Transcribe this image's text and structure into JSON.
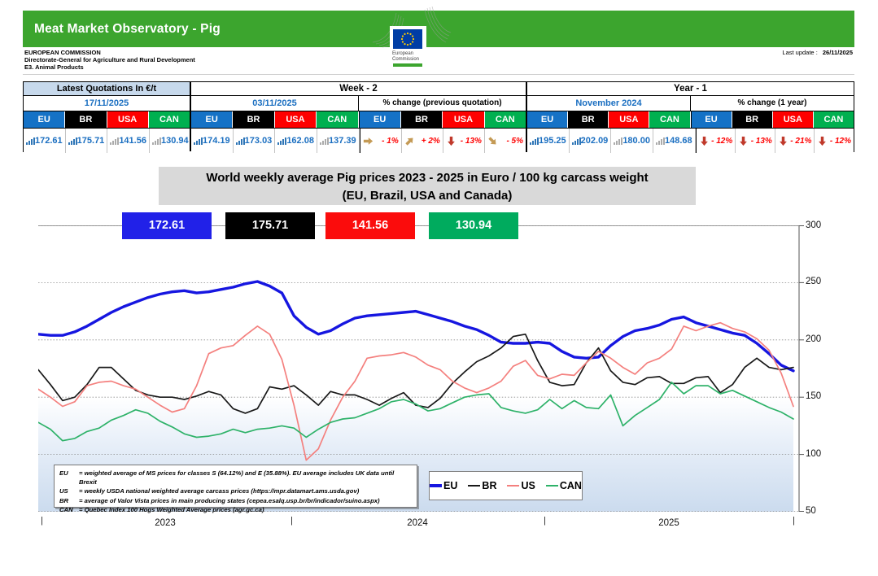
{
  "header": {
    "banner_title": "Meat Market Observatory - Pig",
    "org_line1": "EUROPEAN COMMISSION",
    "org_line2": "Directorate-General for Agriculture and Rural Development",
    "org_line3": "E3. Animal Products",
    "last_update_label": "Last update :",
    "last_update_value": "26/11/2025",
    "logo_caption_line1": "European",
    "logo_caption_line2": "Commission"
  },
  "quotes_table": {
    "columns": [
      "EU",
      "BR",
      "USA",
      "CAN"
    ],
    "col_colors": [
      "#1572C6",
      "#000000",
      "#FE0000",
      "#00B050"
    ],
    "s1": {
      "title": "Latest Quotations In €/t",
      "date": "17/11/2025",
      "values": [
        "172.61",
        "175.71",
        "141.56",
        "130.94"
      ],
      "icons": [
        "blue",
        "blue",
        "gray",
        "gray"
      ]
    },
    "s2": {
      "title": "Week - 2",
      "date": "03/11/2025",
      "pct_title": "% change (previous quotation)",
      "values": [
        "174.19",
        "173.03",
        "162.08",
        "137.39"
      ],
      "icons": [
        "blue",
        "blue",
        "blue",
        "gray"
      ],
      "changes": [
        {
          "dir": "right",
          "color": "#C49A55",
          "text": "- 1%"
        },
        {
          "dir": "up-right",
          "color": "#C49A55",
          "text": "+ 2%"
        },
        {
          "dir": "down",
          "color": "#C0392B",
          "text": "- 13%"
        },
        {
          "dir": "down-right",
          "color": "#C49A55",
          "text": "- 5%"
        }
      ]
    },
    "s3": {
      "title": "Year - 1",
      "date": "November 2024",
      "pct_title": "% change (1 year)",
      "values": [
        "195.25",
        "202.09",
        "180.00",
        "148.68"
      ],
      "icons": [
        "blue",
        "blue",
        "gray",
        "gray"
      ],
      "changes": [
        {
          "dir": "down",
          "color": "#C0392B",
          "text": "- 12%"
        },
        {
          "dir": "down",
          "color": "#C0392B",
          "text": "- 13%"
        },
        {
          "dir": "down",
          "color": "#C0392B",
          "text": "- 21%"
        },
        {
          "dir": "down",
          "color": "#C0392B",
          "text": "- 12%"
        }
      ]
    }
  },
  "chart_data": {
    "type": "line",
    "title_line1": "World weekly average Pig prices 2023 - 2025  in Euro / 100 kg carcass weight",
    "title_line2": "(EU, Brazil, USA and Canada)",
    "ylim": [
      50,
      300
    ],
    "yticks": [
      300,
      250,
      200,
      150,
      100,
      50
    ],
    "x_years": [
      "2023",
      "2024",
      "2025"
    ],
    "grid": true,
    "legend_position": "bottom-center",
    "current_boxes": [
      {
        "value": "172.61",
        "color": "#2121E8"
      },
      {
        "value": "175.71",
        "color": "#000000"
      },
      {
        "value": "141.56",
        "color": "#FB0C0C"
      },
      {
        "value": "130.94",
        "color": "#00AB5E"
      }
    ],
    "legend": [
      {
        "label": "EU",
        "color": "#1616E0"
      },
      {
        "label": "BR",
        "color": "#191919"
      },
      {
        "label": "US",
        "color": "#F4807E"
      },
      {
        "label": "CAN",
        "color": "#2EB269"
      }
    ],
    "series": [
      {
        "name": "EU",
        "color": "#1616E0",
        "width": 3.4,
        "values": [
          205,
          204,
          204,
          207,
          212,
          218,
          224,
          229,
          233,
          237,
          240,
          242,
          243,
          241,
          242,
          244,
          246,
          249,
          251,
          247,
          241,
          221,
          211,
          205,
          208,
          214,
          219,
          221,
          222,
          223,
          224,
          225,
          222,
          219,
          216,
          212,
          209,
          204,
          198,
          197,
          197,
          198,
          197,
          190,
          185,
          184,
          185,
          195,
          203,
          208,
          210,
          213,
          218,
          220,
          215,
          212,
          209,
          206,
          204,
          197,
          188,
          178,
          173
        ]
      },
      {
        "name": "BR",
        "color": "#191919",
        "width": 1.7,
        "values": [
          174,
          161,
          147,
          150,
          161,
          176,
          176,
          166,
          156,
          152,
          150,
          150,
          148,
          151,
          155,
          152,
          140,
          136,
          140,
          159,
          157,
          160,
          152,
          143,
          155,
          152,
          152,
          148,
          143,
          149,
          154,
          143,
          141,
          149,
          162,
          172,
          181,
          186,
          193,
          203,
          205,
          182,
          163,
          160,
          161,
          180,
          193,
          173,
          163,
          161,
          167,
          168,
          162,
          162,
          167,
          168,
          154,
          161,
          176,
          184,
          176,
          174,
          176
        ]
      },
      {
        "name": "US",
        "color": "#F4807E",
        "width": 1.7,
        "values": [
          157,
          150,
          142,
          146,
          160,
          163,
          164,
          160,
          157,
          150,
          143,
          137,
          140,
          160,
          188,
          193,
          195,
          204,
          212,
          205,
          183,
          143,
          95,
          105,
          130,
          150,
          164,
          184,
          186,
          187,
          189,
          185,
          178,
          174,
          164,
          158,
          154,
          158,
          164,
          177,
          182,
          169,
          166,
          170,
          169,
          180,
          190,
          184,
          176,
          170,
          180,
          184,
          192,
          212,
          208,
          212,
          215,
          210,
          207,
          201,
          191,
          171,
          142
        ]
      },
      {
        "name": "CAN",
        "color": "#2EB269",
        "width": 1.7,
        "values": [
          128,
          122,
          112,
          114,
          120,
          123,
          130,
          134,
          139,
          136,
          129,
          124,
          118,
          115,
          116,
          118,
          122,
          119,
          122,
          123,
          125,
          123,
          115,
          122,
          128,
          131,
          132,
          136,
          140,
          146,
          148,
          144,
          138,
          140,
          145,
          150,
          152,
          153,
          141,
          138,
          136,
          139,
          148,
          140,
          147,
          141,
          140,
          152,
          125,
          134,
          141,
          148,
          163,
          153,
          160,
          160,
          153,
          156,
          151,
          146,
          141,
          137,
          131
        ]
      }
    ]
  },
  "footnotes": [
    {
      "code": "EU",
      "text": "= weighted average of MS prices for classes S (64.12%) and E (35.88%). EU average includes UK data  until Brexit"
    },
    {
      "code": "US",
      "text": "= weekly USDA national weighted average carcass prices (https://mpr.datamart.ams.usda.gov)"
    },
    {
      "code": "BR",
      "text": "= average of Valor Vista prices in main producing states (cepea.esalq.usp.br/br/indicador/suino.aspx)"
    },
    {
      "code": "CAN",
      "text": "= Quebec Index 100 Hogs Weighted Average prices (agr.gc.ca)"
    }
  ]
}
